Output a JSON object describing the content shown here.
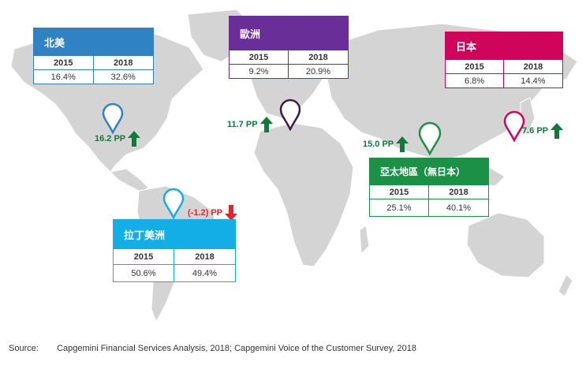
{
  "chart_data": {
    "type": "table",
    "columns": [
      "2015",
      "2018"
    ],
    "regions": [
      {
        "key": "na",
        "name": "北美",
        "color": "#2f83c5",
        "border": "#2f83c5",
        "v2015": "16.4%",
        "v2018": "32.6%",
        "change": "16.2 PP",
        "direction": "up"
      },
      {
        "key": "eu",
        "name": "歐洲",
        "color": "#6a2e98",
        "border": "#6a2e98",
        "v2015": "9.2%",
        "v2018": "20.9%",
        "change": "11.7 PP",
        "direction": "up"
      },
      {
        "key": "jp",
        "name": "日本",
        "color": "#d0045a",
        "border": "#d0045a",
        "v2015": "6.8%",
        "v2018": "14.4%",
        "change": "7.6 PP",
        "direction": "up"
      },
      {
        "key": "apac",
        "name": "亞太地區（無日本）",
        "color": "#1b9146",
        "border": "#1b9146",
        "v2015": "25.1%",
        "v2018": "40.1%",
        "change": "15.0 PP",
        "direction": "up"
      },
      {
        "key": "latam",
        "name": "拉丁美洲",
        "color": "#14aee6",
        "border": "#14aee6",
        "v2015": "50.6%",
        "v2018": "49.4%",
        "change": "(-1.2) PP",
        "direction": "down"
      }
    ],
    "colors": {
      "up": "#0e7b3a",
      "down": "#e8242a",
      "map": "#d4d4d4"
    }
  },
  "source": {
    "label": "Source:",
    "text": "Capgemini Financial Services Analysis, 2018; Capgemini Voice of the Customer Survey, 2018"
  }
}
